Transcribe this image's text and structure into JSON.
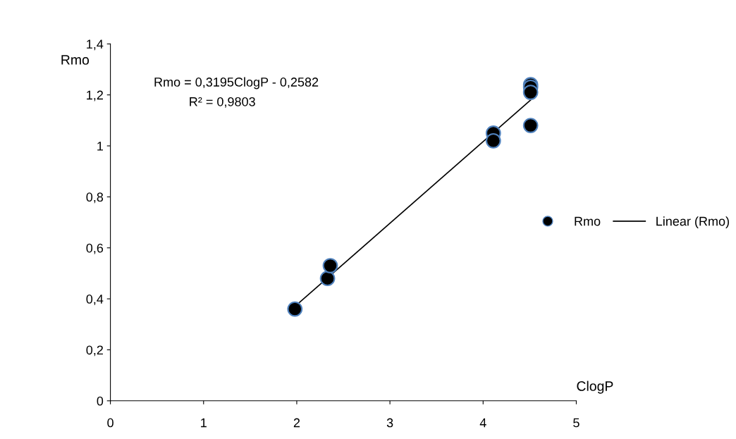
{
  "chart_data": {
    "type": "scatter",
    "xlabel": "ClogP",
    "ylabel": "Rmo",
    "grid": false,
    "legend": "right",
    "annotations": [
      "Rmo = 0,3195ClogP - 0,2582",
      "R² = 0,9803"
    ],
    "series": [
      {
        "name": "Rmo",
        "marker": "circle",
        "color": "#000000",
        "x": [
          1.98,
          2.33,
          2.36,
          4.11,
          4.11,
          4.51,
          4.51,
          4.51,
          4.51
        ],
        "values": [
          0.36,
          0.48,
          0.53,
          1.05,
          1.02,
          1.24,
          1.23,
          1.21,
          1.08
        ]
      },
      {
        "name": "Linear (Rmo)",
        "type": "line",
        "color": "#000000",
        "line_style": "solid",
        "x": [
          1.98,
          4.51
        ],
        "values": [
          0.37,
          1.18
        ]
      }
    ],
    "xlim": [
      0,
      5
    ],
    "xticks": [
      0,
      1,
      2,
      3,
      4,
      5
    ],
    "ylim": [
      0,
      1.4
    ],
    "yticks": [
      0,
      {
        "value": 0.2,
        "label": "0,2"
      },
      {
        "value": 0.4,
        "label": "0,4"
      },
      {
        "value": 0.6,
        "label": "0,6"
      },
      {
        "value": 0.8,
        "label": "0,8"
      },
      1,
      {
        "value": 1.2,
        "label": "1,2"
      },
      {
        "value": 1.4,
        "label": "1,4"
      }
    ]
  }
}
